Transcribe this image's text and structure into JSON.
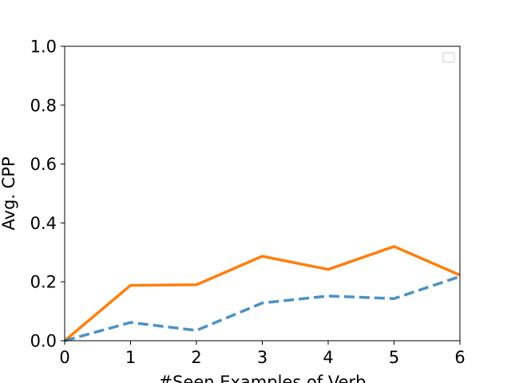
{
  "chart_data": {
    "type": "line",
    "title": "",
    "xlabel": "#Seen Examples of Verb",
    "ylabel": "Avg. CPP",
    "xlim": [
      0,
      6
    ],
    "ylim": [
      0.0,
      1.0
    ],
    "x_ticks": [
      "0",
      "1",
      "2",
      "3",
      "4",
      "5",
      "6"
    ],
    "y_ticks": [
      "0.0",
      "0.2",
      "0.4",
      "0.6",
      "0.8",
      "1.0"
    ],
    "grid": false,
    "legend": {
      "placement": "top-right",
      "entries": []
    },
    "series": [
      {
        "x": [
          0,
          1,
          2,
          3,
          4,
          5,
          6
        ],
        "values": [
          0.0,
          0.188,
          0.19,
          0.287,
          0.242,
          0.32,
          0.223
        ],
        "color": "#ff7f0e",
        "style": "solid"
      },
      {
        "x": [
          0,
          1,
          2,
          3,
          4,
          5,
          6
        ],
        "values": [
          0.0,
          0.062,
          0.035,
          0.128,
          0.152,
          0.143,
          0.218
        ],
        "color": "#1f77b4",
        "style": "dashed"
      }
    ]
  }
}
